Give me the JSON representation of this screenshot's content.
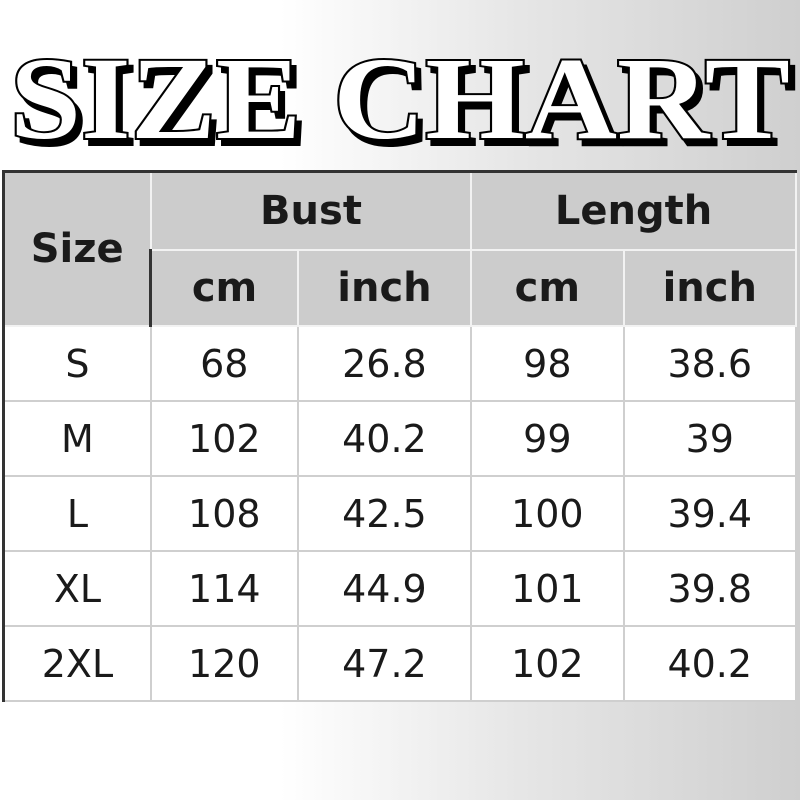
{
  "title": "SIZE CHART",
  "table": {
    "size_header": "Size",
    "groups": [
      {
        "label": "Bust",
        "units": [
          "cm",
          "inch"
        ]
      },
      {
        "label": "Length",
        "units": [
          "cm",
          "inch"
        ]
      }
    ],
    "rows": [
      {
        "size": "S",
        "bust_cm": "68",
        "bust_inch": "26.8",
        "length_cm": "98",
        "length_inch": "38.6"
      },
      {
        "size": "M",
        "bust_cm": "102",
        "bust_inch": "40.2",
        "length_cm": "99",
        "length_inch": "39"
      },
      {
        "size": "L",
        "bust_cm": "108",
        "bust_inch": "42.5",
        "length_cm": "100",
        "length_inch": "39.4"
      },
      {
        "size": "XL",
        "bust_cm": "114",
        "bust_inch": "44.9",
        "length_cm": "101",
        "length_inch": "39.8"
      },
      {
        "size": "2XL",
        "bust_cm": "120",
        "bust_inch": "47.2",
        "length_cm": "102",
        "length_inch": "40.2"
      }
    ]
  },
  "colors": {
    "header_bg": "#cccccc",
    "text": "#1a1a1a"
  }
}
